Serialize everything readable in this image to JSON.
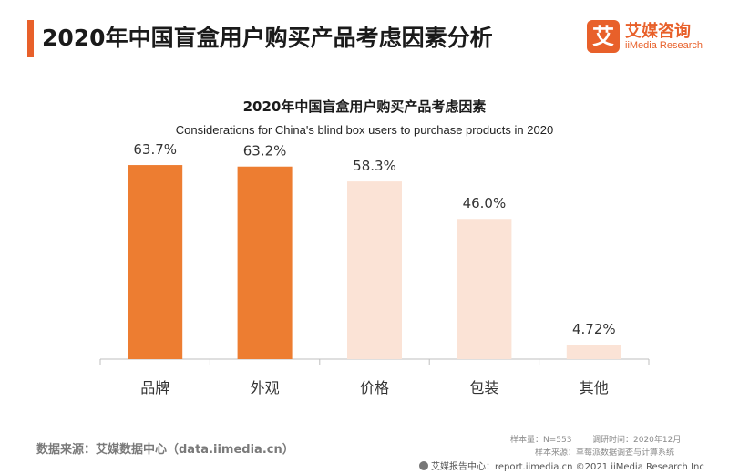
{
  "header": {
    "title": "2020年中国盲盒用户购买产品考虑因素分析"
  },
  "brand": {
    "mark": "艾",
    "name_cn": "艾媒咨询",
    "name_en": "iiMedia Research",
    "color": "#e8602a"
  },
  "colors": {
    "highlight": "#ed7d31",
    "muted": "#fbe3d6",
    "axis": "#bfbfbf"
  },
  "footer": {
    "source": "数据来源：艾媒数据中心（data.iimedia.cn）",
    "sample": "样本量：N=553",
    "survey_date": "调研时间：2020年12月",
    "sample_source": "样本来源：草莓派数据调查与计算系统",
    "copyright": "艾媒报告中心：report.iimedia.cn  ©2021  iiMedia Research  Inc"
  },
  "chart_data": {
    "type": "bar",
    "title": "2020年中国盲盒用户购买产品考虑因素",
    "subtitle": "Considerations for China's blind box users to purchase products in 2020",
    "categories": [
      "品牌",
      "外观",
      "价格",
      "包装",
      "其他"
    ],
    "values": [
      63.7,
      63.2,
      58.3,
      46.0,
      4.72
    ],
    "value_labels": [
      "63.7%",
      "63.2%",
      "58.3%",
      "46.0%",
      "4.72%"
    ],
    "highlighted": [
      true,
      true,
      false,
      false,
      false
    ],
    "ylim": [
      0,
      70
    ],
    "grid": false,
    "legend": "none"
  }
}
